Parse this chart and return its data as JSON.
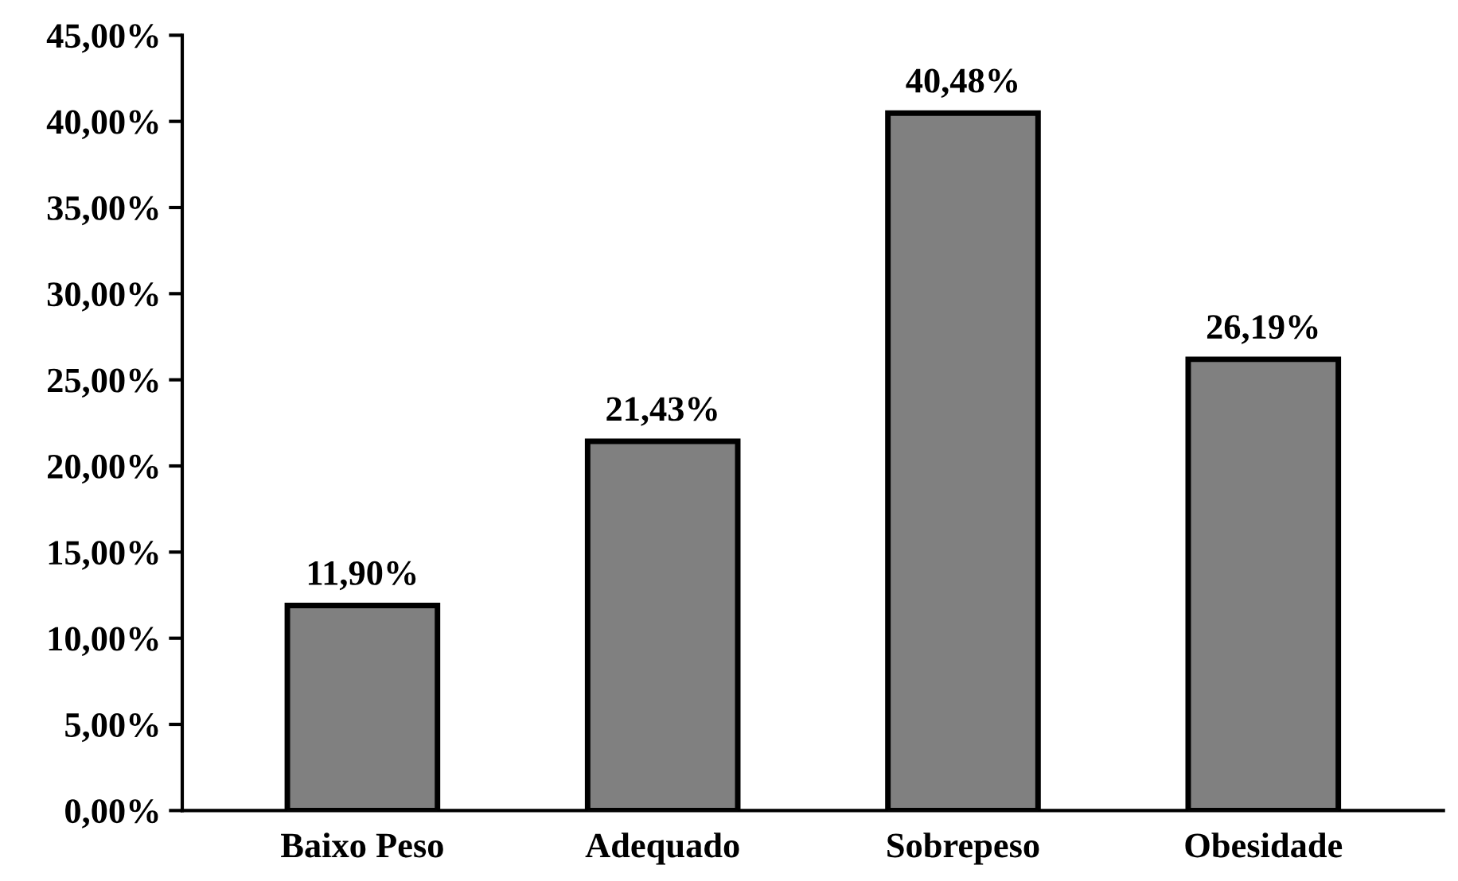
{
  "chart_data": {
    "type": "bar",
    "categories": [
      "Baixo Peso",
      "Adequado",
      "Sobrepeso",
      "Obesidade"
    ],
    "values": [
      11.9,
      21.43,
      40.48,
      26.19
    ],
    "value_labels": [
      "11,90%",
      "21,43%",
      "40,48%",
      "26,19%"
    ],
    "color": "#808080",
    "ylim": [
      0,
      45
    ],
    "yticks": [
      {
        "value": 0,
        "label": "0,00%"
      },
      {
        "value": 5,
        "label": "5,00%"
      },
      {
        "value": 10,
        "label": "10,00%"
      },
      {
        "value": 15,
        "label": "15,00%"
      },
      {
        "value": 20,
        "label": "20,00%"
      },
      {
        "value": 25,
        "label": "25,00%"
      },
      {
        "value": 30,
        "label": "30,00%"
      },
      {
        "value": 35,
        "label": "35,00%"
      },
      {
        "value": 40,
        "label": "40,00%"
      },
      {
        "value": 45,
        "label": "45,00%"
      }
    ],
    "grid": false
  }
}
